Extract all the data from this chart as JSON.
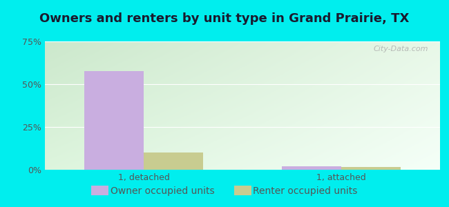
{
  "title": "Owners and renters by unit type in Grand Prairie, TX",
  "categories": [
    "1, detached",
    "1, attached"
  ],
  "owner_values": [
    57.5,
    2.0
  ],
  "renter_values": [
    10.0,
    1.5
  ],
  "owner_color": "#c9aee0",
  "renter_color": "#c8cc90",
  "ylim": [
    0,
    75
  ],
  "yticks": [
    0,
    25,
    50,
    75
  ],
  "ytick_labels": [
    "0%",
    "25%",
    "50%",
    "75%"
  ],
  "outer_bg": "#00eeee",
  "bar_width": 0.3,
  "title_fontsize": 13,
  "tick_fontsize": 9,
  "legend_fontsize": 10,
  "watermark": "City-Data.com"
}
